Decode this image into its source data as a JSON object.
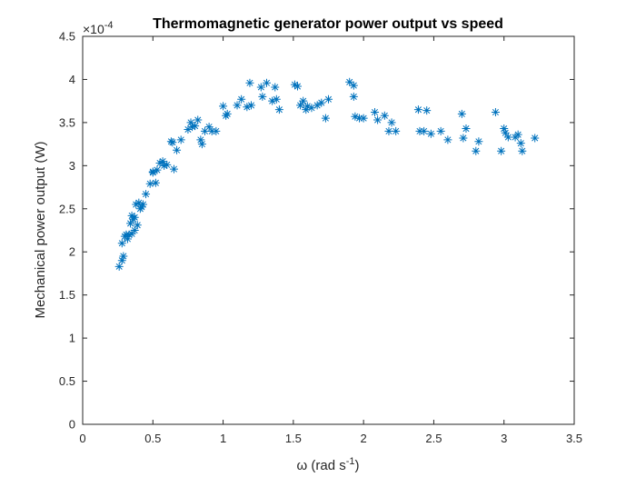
{
  "chart_data": {
    "type": "scatter",
    "title": "Thermomagnetic generator power output vs speed",
    "xlabel_base": "ω (rad s",
    "xlabel_sup": "-1",
    "xlabel_close": ")",
    "ylabel": "Mechanical power output (W)",
    "y_exponent_base": "×10",
    "y_exponent_power": "-4",
    "xlim": [
      0,
      3.5
    ],
    "ylim": [
      0,
      4.5
    ],
    "xticks": [
      "0",
      "0.5",
      "1",
      "1.5",
      "2",
      "2.5",
      "3",
      "3.5"
    ],
    "yticks": [
      "0",
      "0.5",
      "1",
      "1.5",
      "2",
      "2.5",
      "3",
      "3.5",
      "4",
      "4.5"
    ],
    "marker": "asterisk",
    "color": "#0072BD",
    "grid": false,
    "x": [
      0.26,
      0.28,
      0.29,
      0.3,
      0.28,
      0.31,
      0.32,
      0.33,
      0.34,
      0.35,
      0.35,
      0.36,
      0.37,
      0.37,
      0.38,
      0.39,
      0.4,
      0.41,
      0.42,
      0.43,
      0.45,
      0.48,
      0.5,
      0.5,
      0.52,
      0.53,
      0.55,
      0.57,
      0.58,
      0.6,
      0.63,
      0.64,
      0.65,
      0.67,
      0.7,
      0.75,
      0.77,
      0.78,
      0.8,
      0.82,
      0.84,
      0.85,
      0.87,
      0.9,
      0.92,
      0.95,
      1.0,
      1.02,
      1.03,
      1.1,
      1.13,
      1.17,
      1.19,
      1.2,
      1.27,
      1.28,
      1.31,
      1.35,
      1.37,
      1.38,
      1.4,
      1.51,
      1.53,
      1.55,
      1.57,
      1.59,
      1.6,
      1.63,
      1.67,
      1.7,
      1.73,
      1.75,
      1.9,
      1.93,
      1.94,
      1.93,
      1.97,
      2.0,
      2.08,
      2.1,
      2.15,
      2.18,
      2.2,
      2.23,
      2.39,
      2.4,
      2.43,
      2.45,
      2.48,
      2.55,
      2.6,
      2.7,
      2.71,
      2.73,
      2.8,
      2.82,
      2.94,
      2.98,
      3.0,
      3.01,
      3.03,
      3.08,
      3.1,
      3.12,
      3.13,
      3.22
    ],
    "y": [
      1.83,
      1.9,
      1.95,
      2.18,
      2.1,
      2.2,
      2.15,
      2.2,
      2.33,
      2.42,
      2.21,
      2.38,
      2.25,
      2.4,
      2.55,
      2.31,
      2.57,
      2.5,
      2.52,
      2.55,
      2.67,
      2.79,
      2.92,
      2.93,
      2.8,
      2.95,
      3.03,
      3.05,
      3.0,
      3.01,
      3.28,
      3.27,
      2.96,
      3.18,
      3.3,
      3.42,
      3.5,
      3.45,
      3.46,
      3.53,
      3.3,
      3.25,
      3.4,
      3.45,
      3.4,
      3.4,
      3.69,
      3.58,
      3.6,
      3.7,
      3.77,
      3.68,
      3.96,
      3.7,
      3.91,
      3.8,
      3.96,
      3.75,
      3.91,
      3.77,
      3.65,
      3.94,
      3.92,
      3.7,
      3.75,
      3.65,
      3.69,
      3.67,
      3.7,
      3.73,
      3.55,
      3.77,
      3.97,
      3.93,
      3.57,
      3.8,
      3.55,
      3.55,
      3.62,
      3.53,
      3.58,
      3.4,
      3.5,
      3.4,
      3.65,
      3.4,
      3.4,
      3.64,
      3.37,
      3.4,
      3.3,
      3.6,
      3.32,
      3.43,
      3.17,
      3.28,
      3.62,
      3.17,
      3.43,
      3.38,
      3.33,
      3.33,
      3.36,
      3.26,
      3.17,
      3.32
    ]
  }
}
